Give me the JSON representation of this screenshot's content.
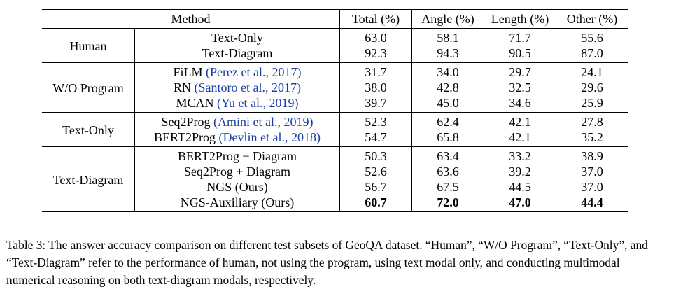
{
  "table": {
    "headers": {
      "method": "Method",
      "total": "Total (%)",
      "angle": "Angle (%)",
      "length": "Length (%)",
      "other": "Other (%)"
    },
    "groups": [
      {
        "name": "Human",
        "rows": [
          {
            "method": "Text-Only",
            "citation": "",
            "total": "63.0",
            "angle": "58.1",
            "length": "71.7",
            "other": "55.6"
          },
          {
            "method": "Text-Diagram",
            "citation": "",
            "total": "92.3",
            "angle": "94.3",
            "length": "90.5",
            "other": "87.0"
          }
        ]
      },
      {
        "name": "W/O Program",
        "rows": [
          {
            "method": "FiLM ",
            "citation": "(Perez et al., 2017)",
            "total": "31.7",
            "angle": "34.0",
            "length": "29.7",
            "other": "24.1"
          },
          {
            "method": "RN ",
            "citation": "(Santoro et al., 2017)",
            "total": "38.0",
            "angle": "42.8",
            "length": "32.5",
            "other": "29.6"
          },
          {
            "method": "MCAN ",
            "citation": "(Yu et al., 2019)",
            "total": "39.7",
            "angle": "45.0",
            "length": "34.6",
            "other": "25.9"
          }
        ]
      },
      {
        "name": "Text-Only",
        "rows": [
          {
            "method": "Seq2Prog ",
            "citation": "(Amini et al., 2019)",
            "total": "52.3",
            "angle": "62.4",
            "length": "42.1",
            "other": "27.8"
          },
          {
            "method": "BERT2Prog ",
            "citation": "(Devlin et al., 2018)",
            "total": "54.7",
            "angle": "65.8",
            "length": "42.1",
            "other": "35.2"
          }
        ]
      },
      {
        "name": "Text-Diagram",
        "rows": [
          {
            "method": "BERT2Prog + Diagram",
            "citation": "",
            "total": "50.3",
            "angle": "63.4",
            "length": "33.2",
            "other": "38.9"
          },
          {
            "method": "Seq2Prog + Diagram",
            "citation": "",
            "total": "52.6",
            "angle": "63.6",
            "length": "39.2",
            "other": "37.0"
          },
          {
            "method": "NGS (Ours)",
            "citation": "",
            "total": "56.7",
            "angle": "67.5",
            "length": "44.5",
            "other": "37.0"
          },
          {
            "method": "NGS-Auxiliary (Ours)",
            "citation": "",
            "total": "60.7",
            "angle": "72.0",
            "length": "47.0",
            "other": "44.4"
          }
        ]
      }
    ]
  },
  "caption": "Table 3: The answer accuracy comparison on different test subsets of GeoQA dataset. “Human”, “W/O Program”, “Text-Only”, and “Text-Diagram” refer to the performance of human, not using the program, using text modal only, and conducting multimodal numerical reasoning on both text-diagram modals, respectively."
}
